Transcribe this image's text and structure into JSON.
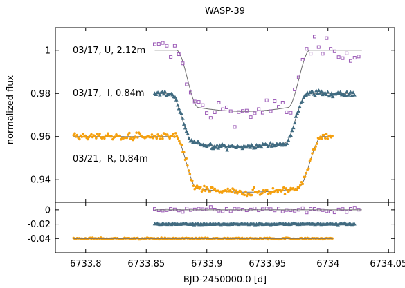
{
  "chart_data": {
    "type": "scatter",
    "title": "WASP-39",
    "xlabel": "BJD-2450000.0 [d]",
    "ylabel": "normalized flux",
    "xlim": [
      6733.775,
      6734.055
    ],
    "x_ticks": [
      6733.8,
      6733.85,
      6733.9,
      6733.95,
      6734,
      6734.05
    ],
    "x_tick_labels": [
      "6733.8",
      "6733.85",
      "6733.9",
      "6733.95",
      "6734",
      "6734.05"
    ],
    "top_panel": {
      "ylim": [
        0.9295,
        1.0105
      ],
      "y_ticks": [
        0.94,
        0.96,
        0.98,
        1
      ],
      "y_tick_labels": [
        "0.94",
        "0.96",
        "0.98",
        "1"
      ],
      "series": [
        {
          "name": "03/17, U, 2.12m",
          "marker": "open-square",
          "color": "#9b59b6",
          "x_range": [
            6733.857,
            6734.028
          ],
          "out_of_transit": 1.0,
          "in_transit": 0.9735,
          "ingress": [
            6733.875,
            6733.893
          ],
          "egress": [
            6733.967,
            6733.985
          ],
          "scatter": 0.004
        },
        {
          "name": "03/17,  I, 0.84m",
          "marker": "triangle",
          "color": "#3f6a80",
          "x_range": [
            6733.857,
            6734.022
          ],
          "out_of_transit": 0.98,
          "in_transit": 0.957,
          "ingress": [
            6733.87,
            6733.889
          ],
          "egress": [
            6733.964,
            6733.983
          ],
          "scatter": 0.0009
        },
        {
          "name": "03/21,  R, 0.84m",
          "marker": "dot",
          "color": "#f5a00e",
          "x_range": [
            6733.79,
            6734.004
          ],
          "out_of_transit": 0.96,
          "in_transit": 0.936,
          "ingress": [
            6733.874,
            6733.892
          ],
          "egress": [
            6733.975,
            6733.995
          ],
          "scatter": 0.0012
        }
      ]
    },
    "bottom_panel": {
      "ylim": [
        -0.06,
        0.0105
      ],
      "y_ticks": [
        0,
        -0.02,
        -0.04
      ],
      "y_tick_labels": [
        "0",
        "-0.02",
        "-0.04"
      ],
      "residual_offsets": [
        0,
        -0.02,
        -0.04
      ],
      "residual_scatter": [
        0.0025,
        0.0006,
        0.0008
      ]
    },
    "model_line_color": "#6e6e6e"
  }
}
